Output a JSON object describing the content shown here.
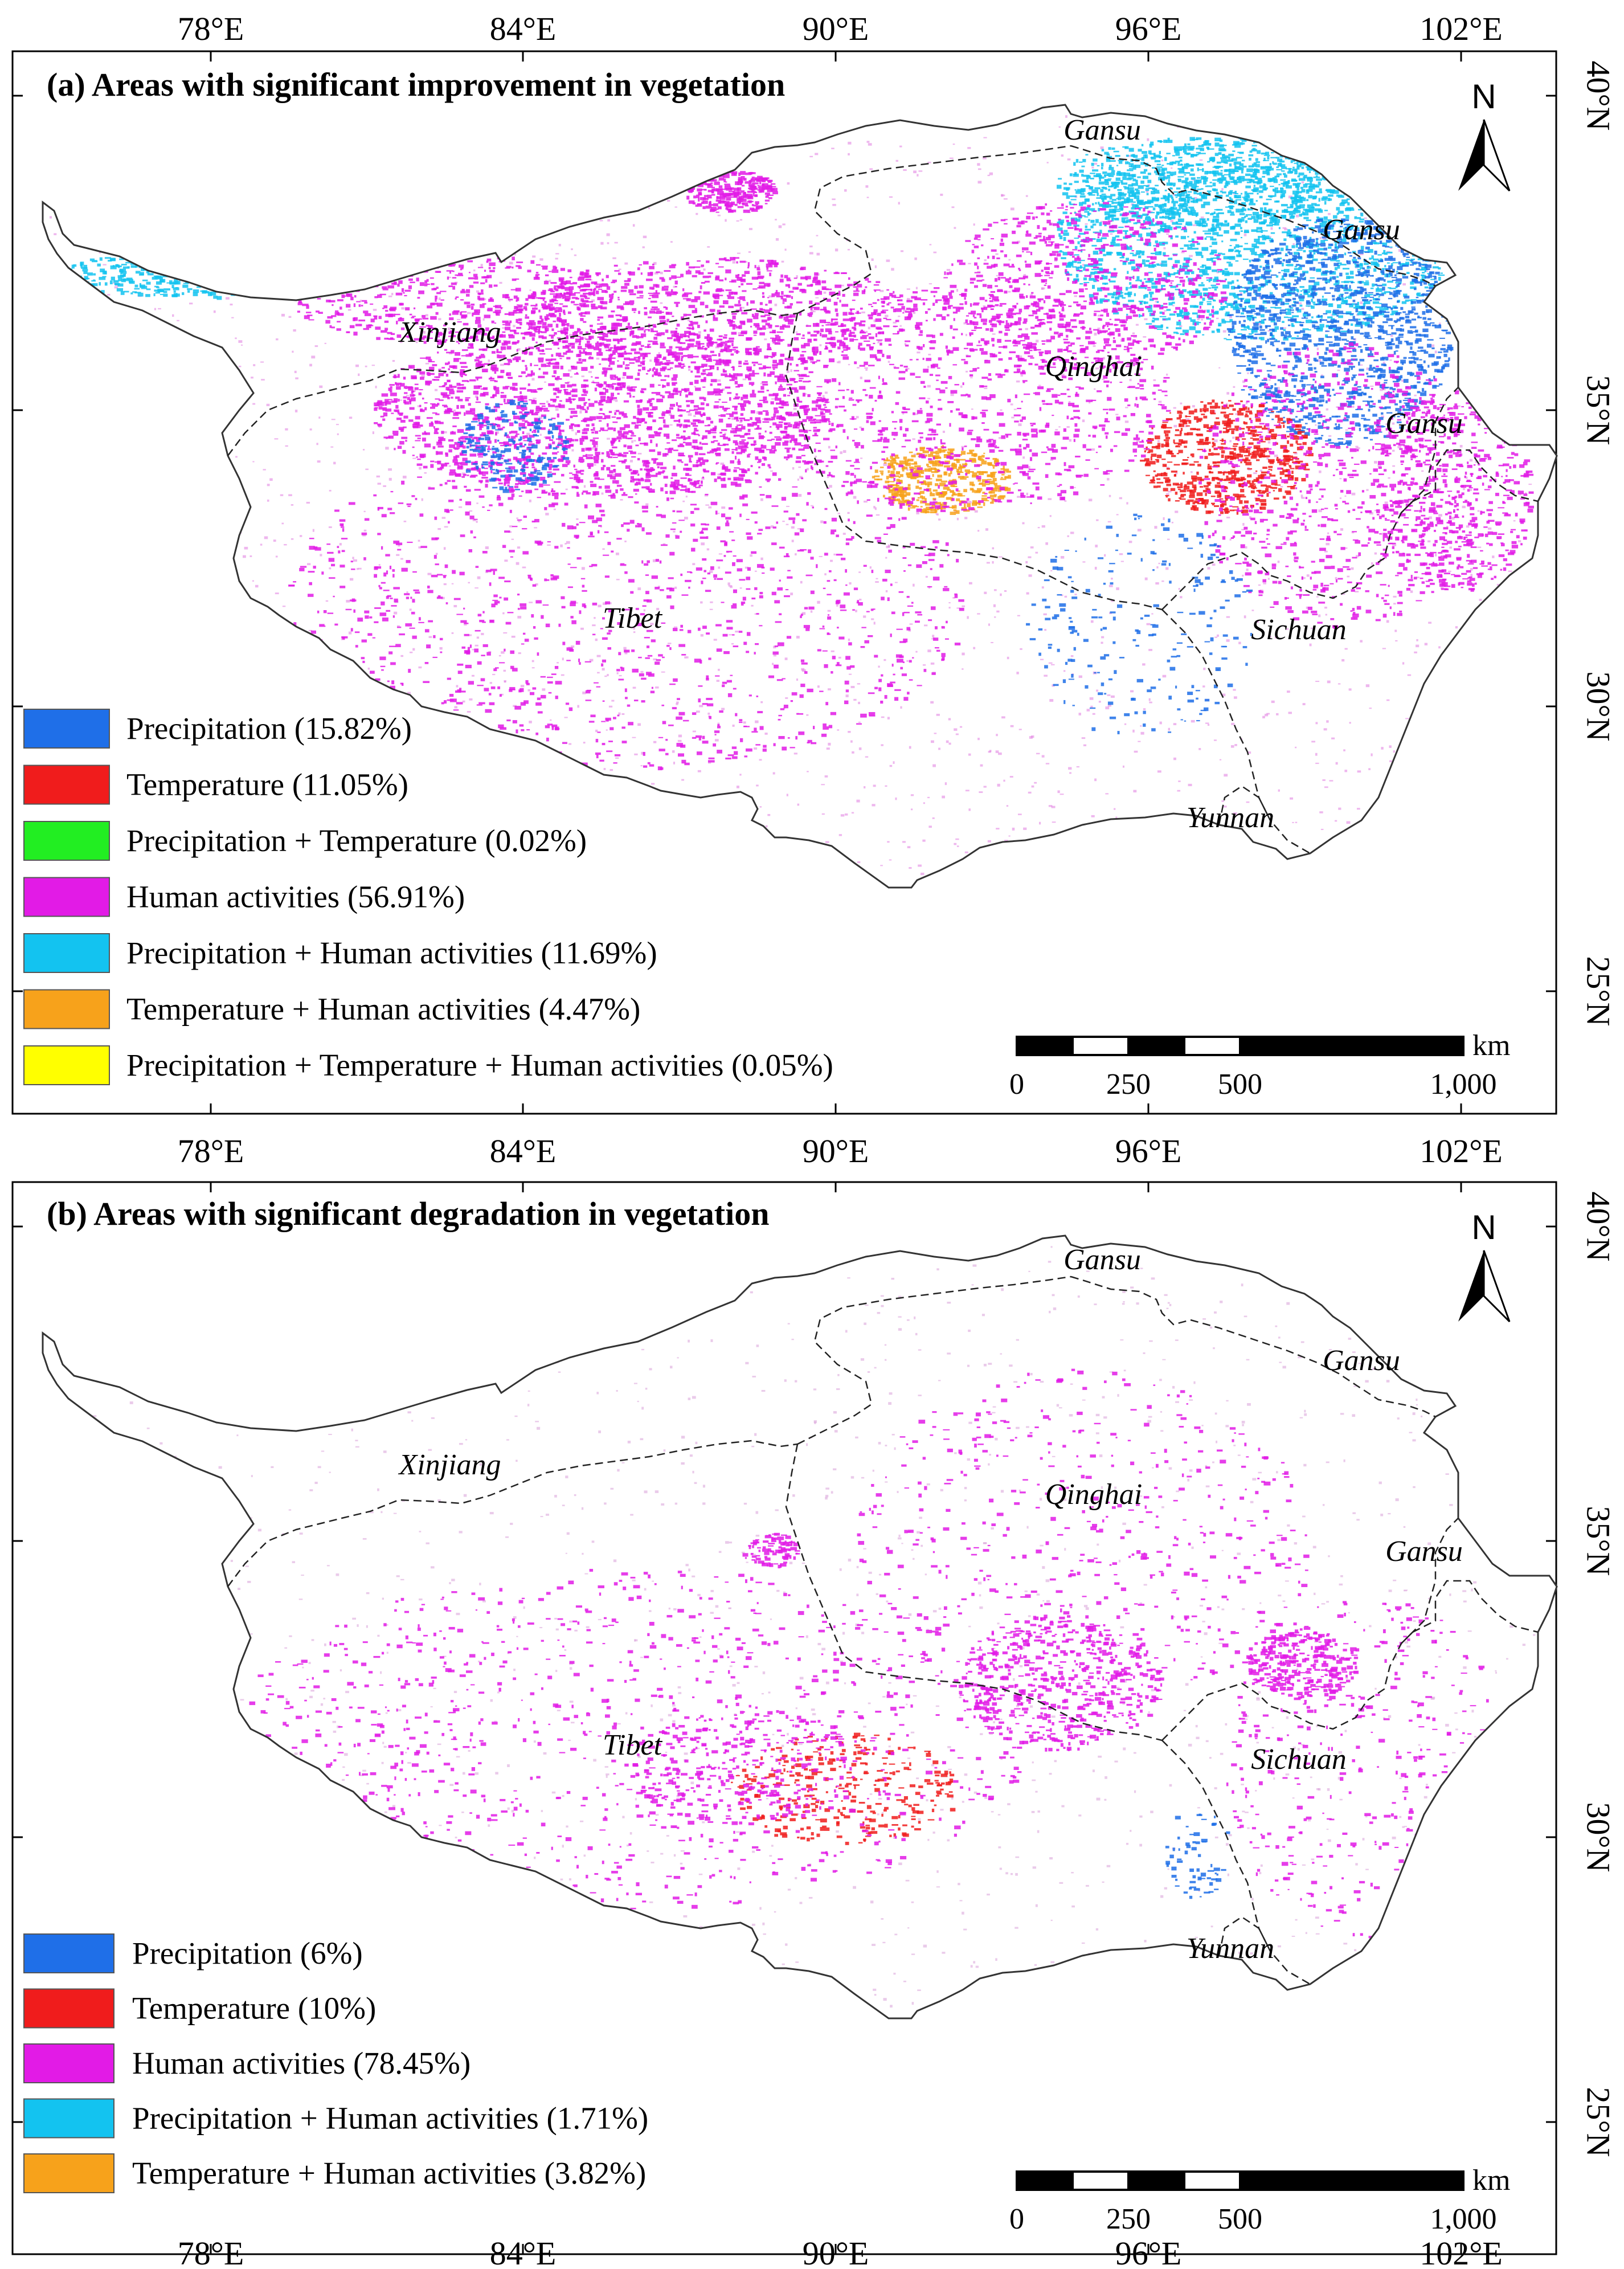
{
  "top_ticks": [
    "78°E",
    "84°E",
    "90°E",
    "96°E",
    "102°E"
  ],
  "lat_ticks": [
    "40°N",
    "35°N",
    "30°N",
    "25°N"
  ],
  "north_label": "N",
  "scale": {
    "labels": [
      "0",
      "250",
      "500",
      "1,000"
    ],
    "unit": "km"
  },
  "panels": [
    {
      "title": "(a) Areas with significant improvement in vegetation",
      "regions": [
        "Gansu",
        "Gansu",
        "Gansu",
        "Xinjiang",
        "Qinghai",
        "Tibet",
        "Sichuan",
        "Yunnan"
      ],
      "legend": [
        {
          "label": "Precipitation (15.82%)",
          "color": "#1f6fe8"
        },
        {
          "label": "Temperature (11.05%)",
          "color": "#f01c1c"
        },
        {
          "label": "Precipitation + Temperature (0.02%)",
          "color": "#22ee22"
        },
        {
          "label": "Human activities (56.91%)",
          "color": "#e21be6"
        },
        {
          "label": "Precipitation + Human activities (11.69%)",
          "color": "#13c3f0"
        },
        {
          "label": "Temperature + Human activities (4.47%)",
          "color": "#f7a21b"
        },
        {
          "label": "Precipitation + Temperature + Human activities (0.05%)",
          "color": "#ffff00"
        }
      ]
    },
    {
      "title": "(b) Areas with significant degradation in vegetation",
      "regions": [
        "Gansu",
        "Gansu",
        "Gansu",
        "Xinjiang",
        "Qinghai",
        "Tibet",
        "Sichuan",
        "Yunnan"
      ],
      "legend": [
        {
          "label": "Precipitation (6%)",
          "color": "#1f6fe8"
        },
        {
          "label": "Temperature (10%)",
          "color": "#f01c1c"
        },
        {
          "label": "Human activities (78.45%)",
          "color": "#e21be6"
        },
        {
          "label": "Precipitation + Human activities (1.71%)",
          "color": "#13c3f0"
        },
        {
          "label": "Temperature + Human activities (3.82%)",
          "color": "#f7a21b"
        }
      ]
    }
  ]
}
